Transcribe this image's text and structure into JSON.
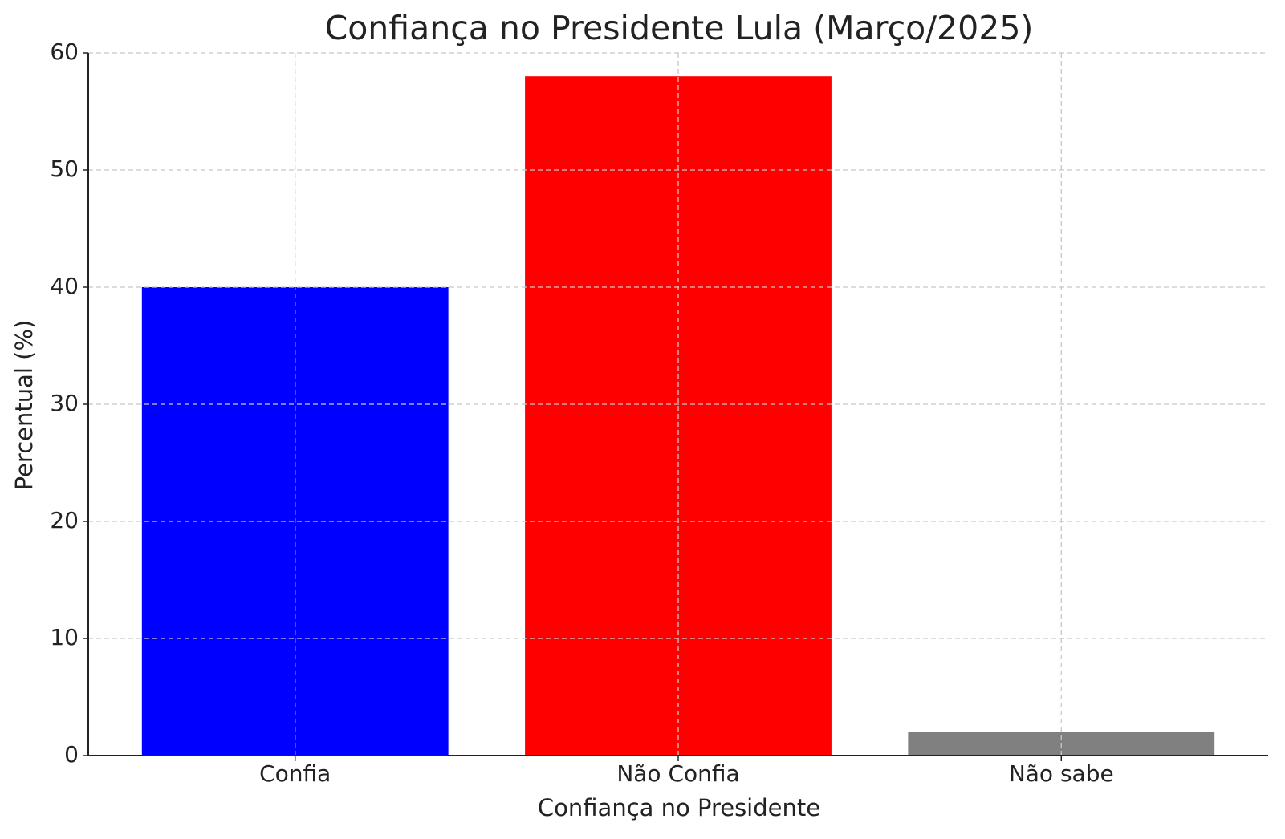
{
  "chart_data": {
    "type": "bar",
    "title": "Confiança no Presidente Lula (Março/2025)",
    "x_label": "Confiança no Presidente",
    "y_label": "Percentual (%)",
    "categories": [
      "Confia",
      "Não Confia",
      "Não sabe"
    ],
    "values": [
      40,
      58,
      2
    ],
    "colors": [
      "#0000ff",
      "#ff0000",
      "#808080"
    ],
    "ylim": [
      0,
      60
    ],
    "yticks": [
      0,
      10,
      20,
      30,
      40,
      50,
      60
    ],
    "grid": true
  }
}
